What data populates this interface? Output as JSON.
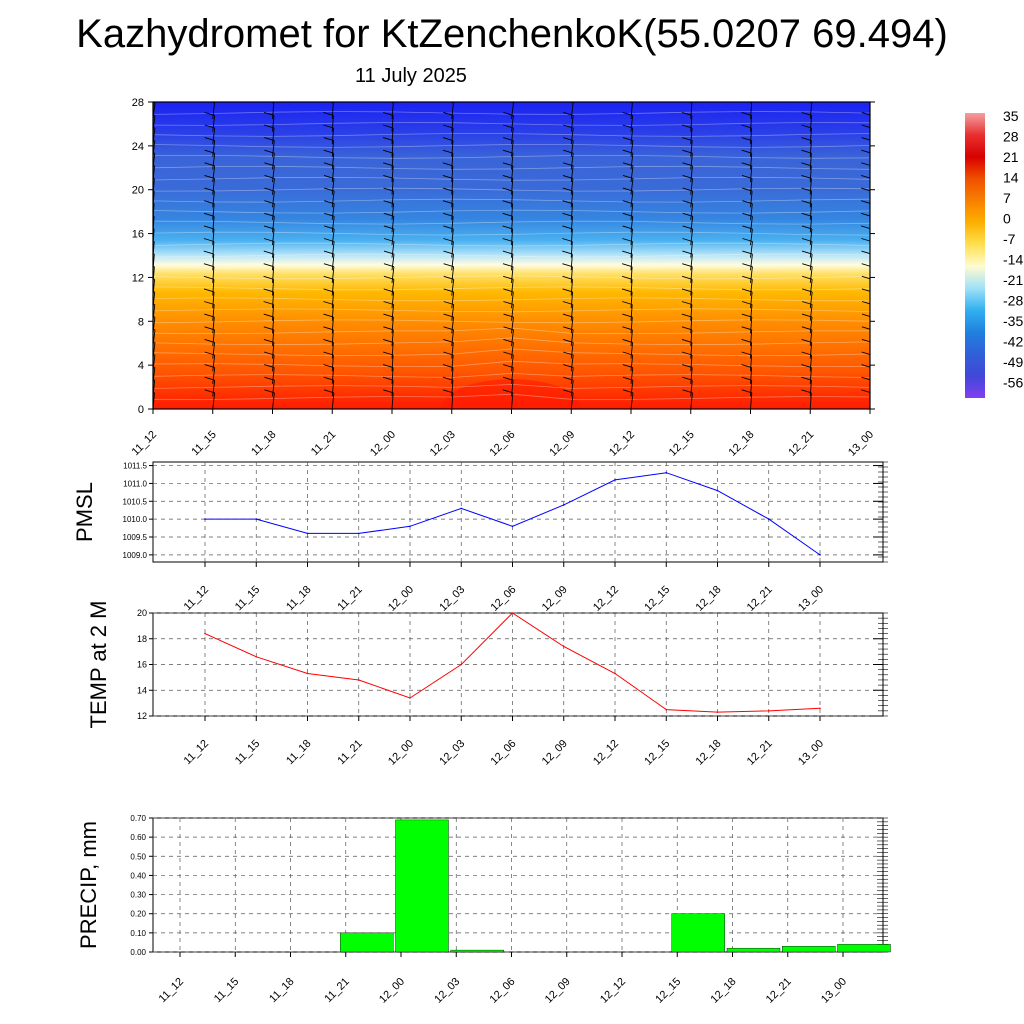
{
  "title": "Kazhydromet for KtZenchenkoK(55.0207 69.494)",
  "subtitle": "11 July 2025",
  "times": [
    "11_12",
    "11_15",
    "11_18",
    "11_21",
    "12_00",
    "12_03",
    "12_06",
    "12_09",
    "12_12",
    "12_15",
    "12_18",
    "12_21",
    "13_00"
  ],
  "colorbar": {
    "labels": [
      "35",
      "28",
      "21",
      "14",
      "7",
      "0",
      "-7",
      "-14",
      "-21",
      "-28",
      "-35",
      "-42",
      "-49",
      "-56"
    ],
    "colors": [
      "#f4a0a0",
      "#e83030",
      "#d80000",
      "#f05000",
      "#f88000",
      "#fcb000",
      "#ffe050",
      "#fffbd0",
      "#a0e0f8",
      "#30b0f0",
      "#2080e0",
      "#3060d8",
      "#4048d8",
      "#8040f0"
    ]
  },
  "chart_data": [
    {
      "type": "heatmap",
      "xlabel": "",
      "ylabel": "",
      "categories": [
        "11_12",
        "11_15",
        "11_18",
        "11_21",
        "12_00",
        "12_03",
        "12_06",
        "12_09",
        "12_12",
        "12_15",
        "12_18",
        "12_21",
        "13_00"
      ],
      "ylim": [
        0,
        28
      ],
      "yticks": [
        "0",
        "4",
        "8",
        "12",
        "16",
        "20",
        "24",
        "28"
      ],
      "freezing_level": [
        13.3,
        13.3,
        13.3,
        13.2,
        13.1,
        13.0,
        12.8,
        12.7,
        12.7,
        12.6,
        12.5,
        12.4,
        12.3
      ],
      "surface_temperature": [
        30,
        29,
        28,
        27,
        26,
        28,
        30,
        28,
        27,
        26,
        25,
        25,
        25
      ],
      "top_temperature": -56,
      "wind_barbs": true
    },
    {
      "type": "line",
      "ylabel": "PMSL",
      "categories": [
        "11_12",
        "11_15",
        "11_18",
        "11_21",
        "12_00",
        "12_03",
        "12_06",
        "12_09",
        "12_12",
        "12_15",
        "12_18",
        "12_21",
        "13_00"
      ],
      "values": [
        1010.0,
        1010.0,
        1009.6,
        1009.6,
        1009.8,
        1010.3,
        1009.8,
        1010.4,
        1011.1,
        1011.3,
        1010.8,
        1010.0,
        1009.0
      ],
      "ylim": [
        1008.8,
        1011.6
      ],
      "yticks": [
        "1009.0",
        "1009.5",
        "1010.0",
        "1010.5",
        "1011.0",
        "1011.5"
      ],
      "color": "#0000ff"
    },
    {
      "type": "line",
      "ylabel": "TEMP at 2 M",
      "categories": [
        "11_12",
        "11_15",
        "11_18",
        "11_21",
        "12_00",
        "12_03",
        "12_06",
        "12_09",
        "12_12",
        "12_15",
        "12_18",
        "12_21",
        "13_00"
      ],
      "values": [
        18.4,
        16.6,
        15.3,
        14.8,
        13.4,
        16.0,
        20.0,
        17.4,
        15.3,
        12.5,
        12.3,
        12.4,
        12.6
      ],
      "ylim": [
        12,
        20
      ],
      "yticks": [
        "12",
        "14",
        "16",
        "18",
        "20"
      ],
      "color": "#ff0000"
    },
    {
      "type": "bar",
      "ylabel": "PRECIP, mm",
      "categories": [
        "11_12",
        "11_15",
        "11_18",
        "11_21",
        "12_00",
        "12_03",
        "12_06",
        "12_09",
        "12_12",
        "12_15",
        "12_18",
        "12_21",
        "13_00"
      ],
      "values": [
        0,
        0,
        0,
        0.1,
        0.69,
        0.01,
        0,
        0,
        0,
        0.2,
        0.02,
        0.03,
        0.04
      ],
      "ylim": [
        0,
        0.7
      ],
      "yticks": [
        "0.00",
        "0.10",
        "0.20",
        "0.30",
        "0.40",
        "0.50",
        "0.60",
        "0.70"
      ],
      "color": "#00ff00"
    }
  ]
}
